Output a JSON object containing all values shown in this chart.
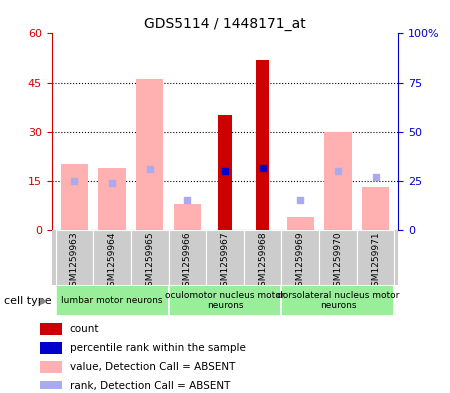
{
  "title": "GDS5114 / 1448171_at",
  "samples": [
    "GSM1259963",
    "GSM1259964",
    "GSM1259965",
    "GSM1259966",
    "GSM1259967",
    "GSM1259968",
    "GSM1259969",
    "GSM1259970",
    "GSM1259971"
  ],
  "count_values": [
    null,
    null,
    null,
    null,
    35,
    52,
    null,
    null,
    null
  ],
  "rank_values": [
    null,
    null,
    null,
    null,
    30,
    31.5,
    null,
    null,
    null
  ],
  "absent_value": [
    20,
    19,
    46,
    8,
    null,
    null,
    4,
    30,
    13
  ],
  "absent_rank": [
    25,
    24,
    31,
    15,
    null,
    null,
    15,
    30,
    27
  ],
  "left_ylim": [
    0,
    60
  ],
  "right_ylim": [
    0,
    100
  ],
  "left_yticks": [
    0,
    15,
    30,
    45,
    60
  ],
  "right_yticks": [
    0,
    25,
    50,
    75,
    100
  ],
  "right_yticklabels": [
    "0",
    "25",
    "50",
    "75",
    "100%"
  ],
  "left_color": "#cc0000",
  "right_color": "#0000cc",
  "absent_bar_color": "#ffb0b0",
  "absent_rank_color": "#aaaaee",
  "cell_groups": [
    {
      "label": "lumbar motor neurons",
      "start": 0,
      "end": 3
    },
    {
      "label": "oculomotor nucleus motor\nneurons",
      "start": 3,
      "end": 6
    },
    {
      "label": "dorsolateral nucleus motor\nneurons",
      "start": 6,
      "end": 9
    }
  ],
  "legend_items": [
    {
      "color": "#cc0000",
      "label": "count"
    },
    {
      "color": "#0000cc",
      "label": "percentile rank within the sample"
    },
    {
      "color": "#ffb0b0",
      "label": "value, Detection Call = ABSENT"
    },
    {
      "color": "#aaaaee",
      "label": "rank, Detection Call = ABSENT"
    }
  ],
  "cell_type_label": "cell type",
  "group_bg_color": "#99ee99",
  "sample_box_color": "#cccccc",
  "bar_width": 0.45
}
